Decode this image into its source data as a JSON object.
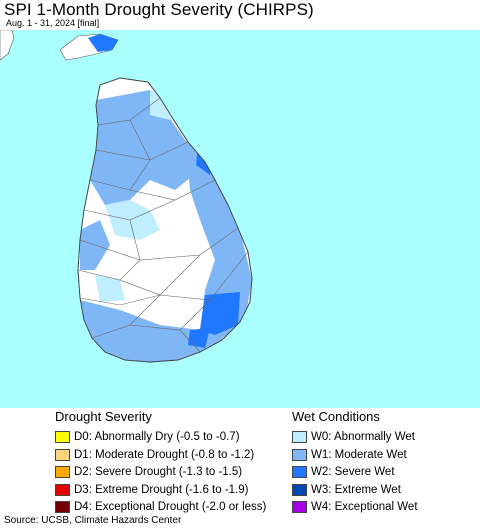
{
  "title": "SPI 1-Month Drought Severity (CHIRPS)",
  "subtitle": "Aug. 1 - 31, 2024 [final]",
  "map": {
    "ocean_color": "#aaffff",
    "land_color": "#ffffff",
    "boundary_color": "#555555"
  },
  "legend": {
    "drought": {
      "title": "Drought Severity",
      "items": [
        {
          "label": "D0: Abnormally Dry (-0.5 to -0.7)",
          "color": "#ffff00"
        },
        {
          "label": "D1: Moderate Drought (-0.8 to -1.2)",
          "color": "#fcd37f"
        },
        {
          "label": "D2: Severe Drought (-1.3 to -1.5)",
          "color": "#ffaa00"
        },
        {
          "label": "D3: Extreme Drought (-1.6 to -1.9)",
          "color": "#e60000"
        },
        {
          "label": "D4: Exceptional Drought (-2.0 or less)",
          "color": "#730000"
        }
      ]
    },
    "wet": {
      "title": "Wet Conditions",
      "items": [
        {
          "label": "W0: Abnormally Wet",
          "color": "#bfeeff"
        },
        {
          "label": "W1: Moderate Wet",
          "color": "#7fb6f5"
        },
        {
          "label": "W2: Severe Wet",
          "color": "#1f78ff"
        },
        {
          "label": "W3: Extreme Wet",
          "color": "#0047b3"
        },
        {
          "label": "W4: Exceptional Wet",
          "color": "#a800e6"
        }
      ]
    }
  },
  "source": "Source: UCSB, Climate Hazards Center"
}
